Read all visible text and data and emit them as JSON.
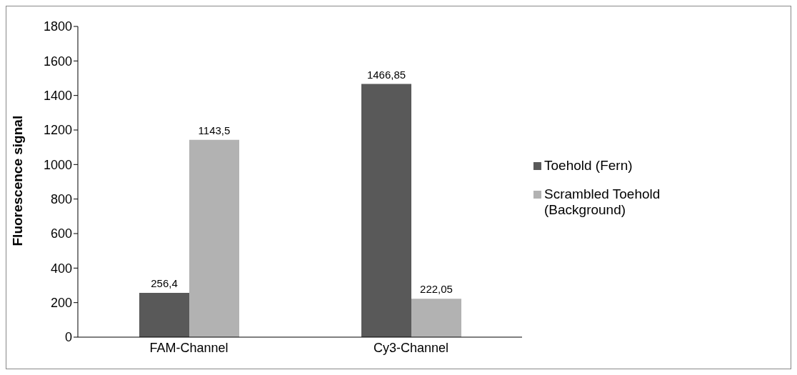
{
  "chart_data": {
    "type": "bar",
    "ylabel": "Fluorescence signal",
    "categories": [
      "FAM-Channel",
      "Cy3-Channel"
    ],
    "series": [
      {
        "name": "Toehold (Fern)",
        "color": "#595959",
        "values": [
          256.4,
          1466.85
        ],
        "value_labels": [
          "256,4",
          "1466,85"
        ]
      },
      {
        "name": "Scrambled Toehold (Background)",
        "color": "#b2b2b2",
        "values": [
          1143.5,
          222.05
        ],
        "value_labels": [
          "1143,5",
          "222,05"
        ]
      }
    ],
    "ylim": [
      0,
      1800
    ],
    "yticks": [
      0,
      200,
      400,
      600,
      800,
      1000,
      1200,
      1400,
      1600,
      1800
    ],
    "grid": false,
    "legend": "right"
  }
}
